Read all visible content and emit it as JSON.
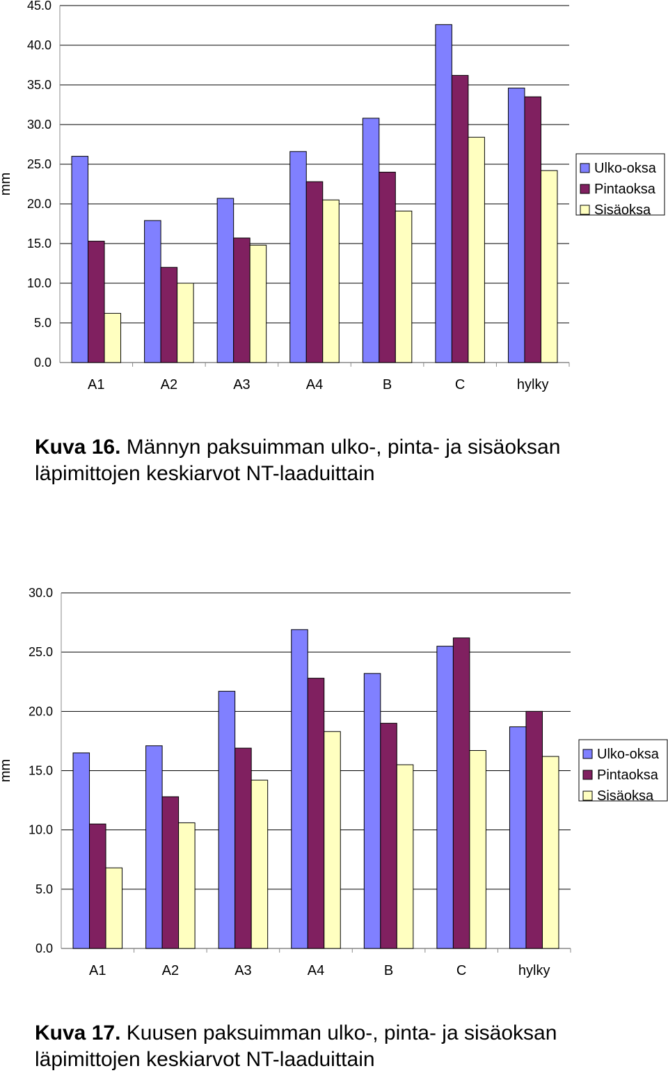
{
  "chart_data": [
    {
      "type": "bar",
      "ylabel": "mm",
      "ylim": [
        0,
        45
      ],
      "yticks": [
        "0.0",
        "5.0",
        "10.0",
        "15.0",
        "20.0",
        "25.0",
        "30.0",
        "35.0",
        "40.0",
        "45.0"
      ],
      "categories": [
        "A1",
        "A2",
        "A3",
        "A4",
        "B",
        "C",
        "hylky"
      ],
      "series": [
        {
          "name": "Ulko-oksa",
          "color": "#8080ff",
          "values": [
            26.0,
            17.9,
            20.7,
            26.6,
            30.8,
            42.6,
            34.6
          ]
        },
        {
          "name": "Pintaoksa",
          "color": "#802060",
          "values": [
            15.3,
            12.0,
            15.7,
            22.8,
            24.0,
            36.2,
            33.5
          ]
        },
        {
          "name": "Sisäoksa",
          "color": "#ffffc0",
          "values": [
            6.2,
            10.0,
            14.8,
            20.5,
            19.1,
            28.4,
            24.2
          ]
        }
      ],
      "grid": true,
      "legend": "right",
      "caption_label": "Kuva 16.",
      "caption_text": "Männyn paksuimman ulko-, pinta- ja sisäoksan läpimittojen keskiarvot NT-laaduittain"
    },
    {
      "type": "bar",
      "ylabel": "mm",
      "ylim": [
        0,
        30
      ],
      "yticks": [
        "0.0",
        "5.0",
        "10.0",
        "15.0",
        "20.0",
        "25.0",
        "30.0"
      ],
      "categories": [
        "A1",
        "A2",
        "A3",
        "A4",
        "B",
        "C",
        "hylky"
      ],
      "series": [
        {
          "name": "Ulko-oksa",
          "color": "#8080ff",
          "values": [
            16.5,
            17.1,
            21.7,
            26.9,
            23.2,
            25.5,
            18.7
          ]
        },
        {
          "name": "Pintaoksa",
          "color": "#802060",
          "values": [
            10.5,
            12.8,
            16.9,
            22.8,
            19.0,
            26.2,
            20.0
          ]
        },
        {
          "name": "Sisäoksa",
          "color": "#ffffc0",
          "values": [
            6.8,
            10.6,
            14.2,
            18.3,
            15.5,
            16.7,
            16.2
          ]
        }
      ],
      "grid": true,
      "legend": "right",
      "caption_label": "Kuva 17.",
      "caption_text": "Kuusen paksuimman ulko-, pinta- ja sisäoksan läpimittojen keskiarvot NT-laaduittain"
    }
  ]
}
